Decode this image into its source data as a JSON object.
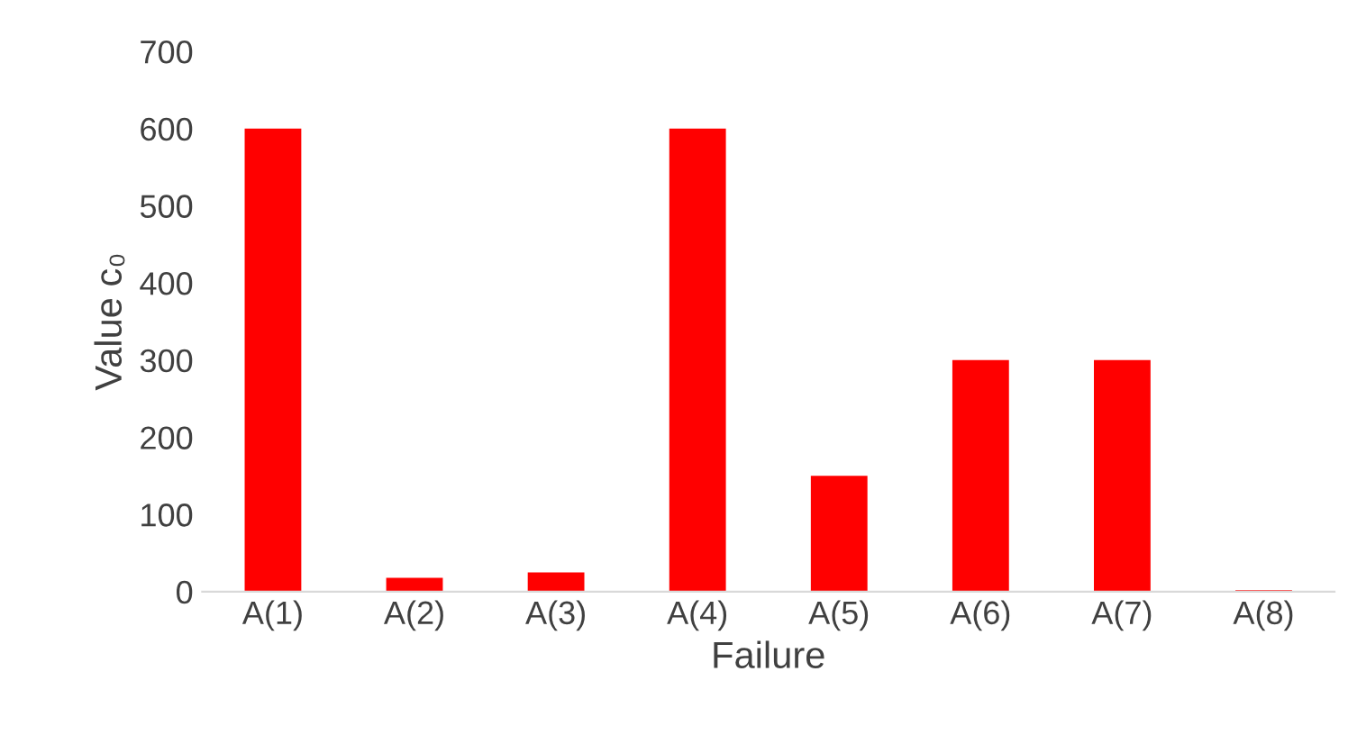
{
  "chart_data": {
    "type": "bar",
    "xlabel": "Failure",
    "ylabel": "Value c₀",
    "categories": [
      "A(1)",
      "A(2)",
      "A(3)",
      "A(4)",
      "A(5)",
      "A(6)",
      "A(7)",
      "A(8)"
    ],
    "values": [
      600,
      18,
      25,
      600,
      150,
      300,
      300,
      2
    ],
    "color": "#ff0000",
    "ylim": [
      0,
      700
    ],
    "yticks": [
      0,
      100,
      200,
      300,
      400,
      500,
      600,
      700
    ],
    "grid": false,
    "legend": false
  }
}
